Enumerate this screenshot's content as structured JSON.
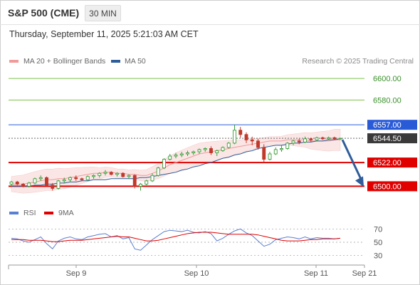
{
  "header": {
    "title": "S&P 500 (CME)",
    "timeframe": "30 MIN",
    "timestamp": "Thursday, September 11, 2025 5:21:03 AM CET"
  },
  "legend": {
    "ma20_label": "MA 20 + Bollinger Bands",
    "ma50_label": "MA 50",
    "credit": "Research © 2025 Trading Central"
  },
  "rsi_legend": {
    "rsi_label": "RSI",
    "ma_label": "9MA"
  },
  "colors": {
    "bull": "#3a9e3a",
    "bear": "#c0392b",
    "ma20": "#f09a9a",
    "ma50": "#2f5d9a",
    "band_fill": "#fbe4e4",
    "support": "#e00000",
    "resistance_blue": "#2a5bd7",
    "target_green": "#7cc04a",
    "arrow": "#2f5d9a",
    "rsi": "#5b7fd1",
    "rsi_ma": "#e00000"
  },
  "chart_data": [
    {
      "type": "candlestick",
      "title": "",
      "x_ticks": [
        "Sep 9",
        "Sep 10",
        "Sep 11",
        "Sep 21"
      ],
      "ylim": [
        6493,
        6608
      ],
      "price_levels": [
        {
          "value": 6600.0,
          "label": "6600.00",
          "kind": "target"
        },
        {
          "value": 6580.0,
          "label": "6580.00",
          "kind": "target"
        },
        {
          "value": 6557.0,
          "label": "6557.00",
          "kind": "resistance"
        },
        {
          "value": 6544.5,
          "label": "6544.50",
          "kind": "last_price"
        },
        {
          "value": 6522.0,
          "label": "6522.00",
          "kind": "pivot"
        },
        {
          "value": 6500.0,
          "label": "6500.00",
          "kind": "support"
        }
      ],
      "series": [
        {
          "name": "MA 20 + Bollinger Bands",
          "kind": "ma20",
          "values": [
            6502,
            6502,
            6502,
            6503,
            6504,
            6505,
            6506,
            6506,
            6507,
            6507,
            6508,
            6509,
            6510,
            6511,
            6512,
            6512,
            6513,
            6513,
            6512,
            6512,
            6511,
            6511,
            6510,
            6510,
            6512,
            6514,
            6517,
            6520,
            6522,
            6524,
            6526,
            6528,
            6530,
            6531,
            6532,
            6533,
            6534,
            6535,
            6536,
            6537,
            6538,
            6539,
            6540,
            6541,
            6542,
            6542,
            6542,
            6543,
            6543,
            6543,
            6543,
            6542,
            6542,
            6542,
            6542,
            6543,
            6543
          ]
        },
        {
          "name": "MA 50",
          "kind": "ma50",
          "values": [
            6500,
            6500,
            6500,
            6500,
            6501,
            6501,
            6502,
            6502,
            6503,
            6503,
            6504,
            6504,
            6505,
            6505,
            6506,
            6506,
            6506,
            6507,
            6507,
            6507,
            6507,
            6507,
            6508,
            6508,
            6509,
            6510,
            6511,
            6512,
            6513,
            6515,
            6516,
            6518,
            6519,
            6521,
            6522,
            6524,
            6526,
            6527,
            6529,
            6530,
            6532,
            6533,
            6535,
            6536,
            6537,
            6538,
            6538,
            6539,
            6540,
            6540,
            6541,
            6541,
            6542,
            6542,
            6543,
            6543,
            6544
          ]
        }
      ],
      "candles": [
        [
          6502,
          6505,
          6500,
          6504
        ],
        [
          6504,
          6505,
          6501,
          6502
        ],
        [
          6502,
          6503,
          6499,
          6500
        ],
        [
          6500,
          6504,
          6499,
          6503
        ],
        [
          6503,
          6508,
          6502,
          6507
        ],
        [
          6507,
          6510,
          6505,
          6508
        ],
        [
          6508,
          6509,
          6500,
          6501
        ],
        [
          6501,
          6503,
          6496,
          6498
        ],
        [
          6498,
          6506,
          6497,
          6505
        ],
        [
          6505,
          6508,
          6503,
          6506
        ],
        [
          6506,
          6509,
          6504,
          6508
        ],
        [
          6508,
          6510,
          6505,
          6507
        ],
        [
          6507,
          6508,
          6505,
          6506
        ],
        [
          6506,
          6510,
          6505,
          6509
        ],
        [
          6509,
          6511,
          6507,
          6510
        ],
        [
          6510,
          6513,
          6508,
          6512
        ],
        [
          6512,
          6515,
          6510,
          6513
        ],
        [
          6513,
          6514,
          6510,
          6511
        ],
        [
          6511,
          6513,
          6509,
          6512
        ],
        [
          6512,
          6513,
          6508,
          6509
        ],
        [
          6509,
          6511,
          6507,
          6510
        ],
        [
          6510,
          6511,
          6498,
          6500
        ],
        [
          6500,
          6503,
          6496,
          6502
        ],
        [
          6502,
          6506,
          6501,
          6505
        ],
        [
          6505,
          6512,
          6504,
          6510
        ],
        [
          6510,
          6518,
          6509,
          6517
        ],
        [
          6517,
          6526,
          6516,
          6525
        ],
        [
          6525,
          6530,
          6524,
          6528
        ],
        [
          6528,
          6531,
          6526,
          6529
        ],
        [
          6529,
          6532,
          6527,
          6530
        ],
        [
          6530,
          6533,
          6528,
          6531
        ],
        [
          6531,
          6533,
          6529,
          6532
        ],
        [
          6532,
          6535,
          6530,
          6534
        ],
        [
          6534,
          6536,
          6532,
          6535
        ],
        [
          6535,
          6537,
          6529,
          6531
        ],
        [
          6531,
          6534,
          6528,
          6533
        ],
        [
          6533,
          6537,
          6532,
          6536
        ],
        [
          6536,
          6541,
          6535,
          6540
        ],
        [
          6540,
          6557,
          6539,
          6552
        ],
        [
          6552,
          6555,
          6545,
          6548
        ],
        [
          6548,
          6550,
          6540,
          6543
        ],
        [
          6543,
          6546,
          6538,
          6542
        ],
        [
          6542,
          6544,
          6534,
          6536
        ],
        [
          6536,
          6539,
          6522,
          6525
        ],
        [
          6525,
          6532,
          6524,
          6530
        ],
        [
          6530,
          6536,
          6529,
          6534
        ],
        [
          6534,
          6538,
          6532,
          6535
        ],
        [
          6535,
          6541,
          6534,
          6540
        ],
        [
          6540,
          6543,
          6538,
          6542
        ],
        [
          6542,
          6544,
          6539,
          6541
        ],
        [
          6541,
          6546,
          6540,
          6544
        ],
        [
          6544,
          6545,
          6541,
          6543
        ],
        [
          6543,
          6546,
          6542,
          6545
        ],
        [
          6545,
          6546,
          6543,
          6544
        ],
        [
          6544,
          6546,
          6543,
          6545
        ],
        [
          6545,
          6546,
          6543,
          6544
        ],
        [
          6544,
          6545,
          6543,
          6544.5
        ]
      ]
    },
    {
      "type": "line",
      "title": "",
      "ylim": [
        20,
        80
      ],
      "y_ticks": [
        "70",
        "50",
        "30"
      ],
      "series": [
        {
          "name": "RSI",
          "kind": "rsi",
          "values": [
            56,
            55,
            52,
            50,
            54,
            58,
            48,
            40,
            52,
            56,
            58,
            55,
            54,
            58,
            60,
            62,
            63,
            58,
            60,
            55,
            57,
            40,
            38,
            46,
            54,
            60,
            66,
            68,
            67,
            66,
            68,
            65,
            64,
            66,
            63,
            52,
            56,
            62,
            67,
            70,
            64,
            60,
            52,
            44,
            47,
            54,
            56,
            58,
            57,
            55,
            58,
            55,
            57,
            56,
            56,
            55,
            56
          ]
        },
        {
          "name": "9MA",
          "kind": "rsi_ma",
          "values": [
            54,
            54,
            54,
            53,
            53,
            53,
            52,
            51,
            51,
            52,
            53,
            53,
            53,
            54,
            55,
            56,
            57,
            58,
            59,
            58,
            58,
            56,
            54,
            52,
            52,
            53,
            55,
            57,
            59,
            61,
            63,
            64,
            65,
            65,
            65,
            64,
            63,
            62,
            62,
            62,
            62,
            62,
            61,
            59,
            57,
            55,
            53,
            52,
            52,
            52,
            53,
            54,
            54,
            55,
            55,
            55,
            56
          ]
        }
      ]
    }
  ]
}
